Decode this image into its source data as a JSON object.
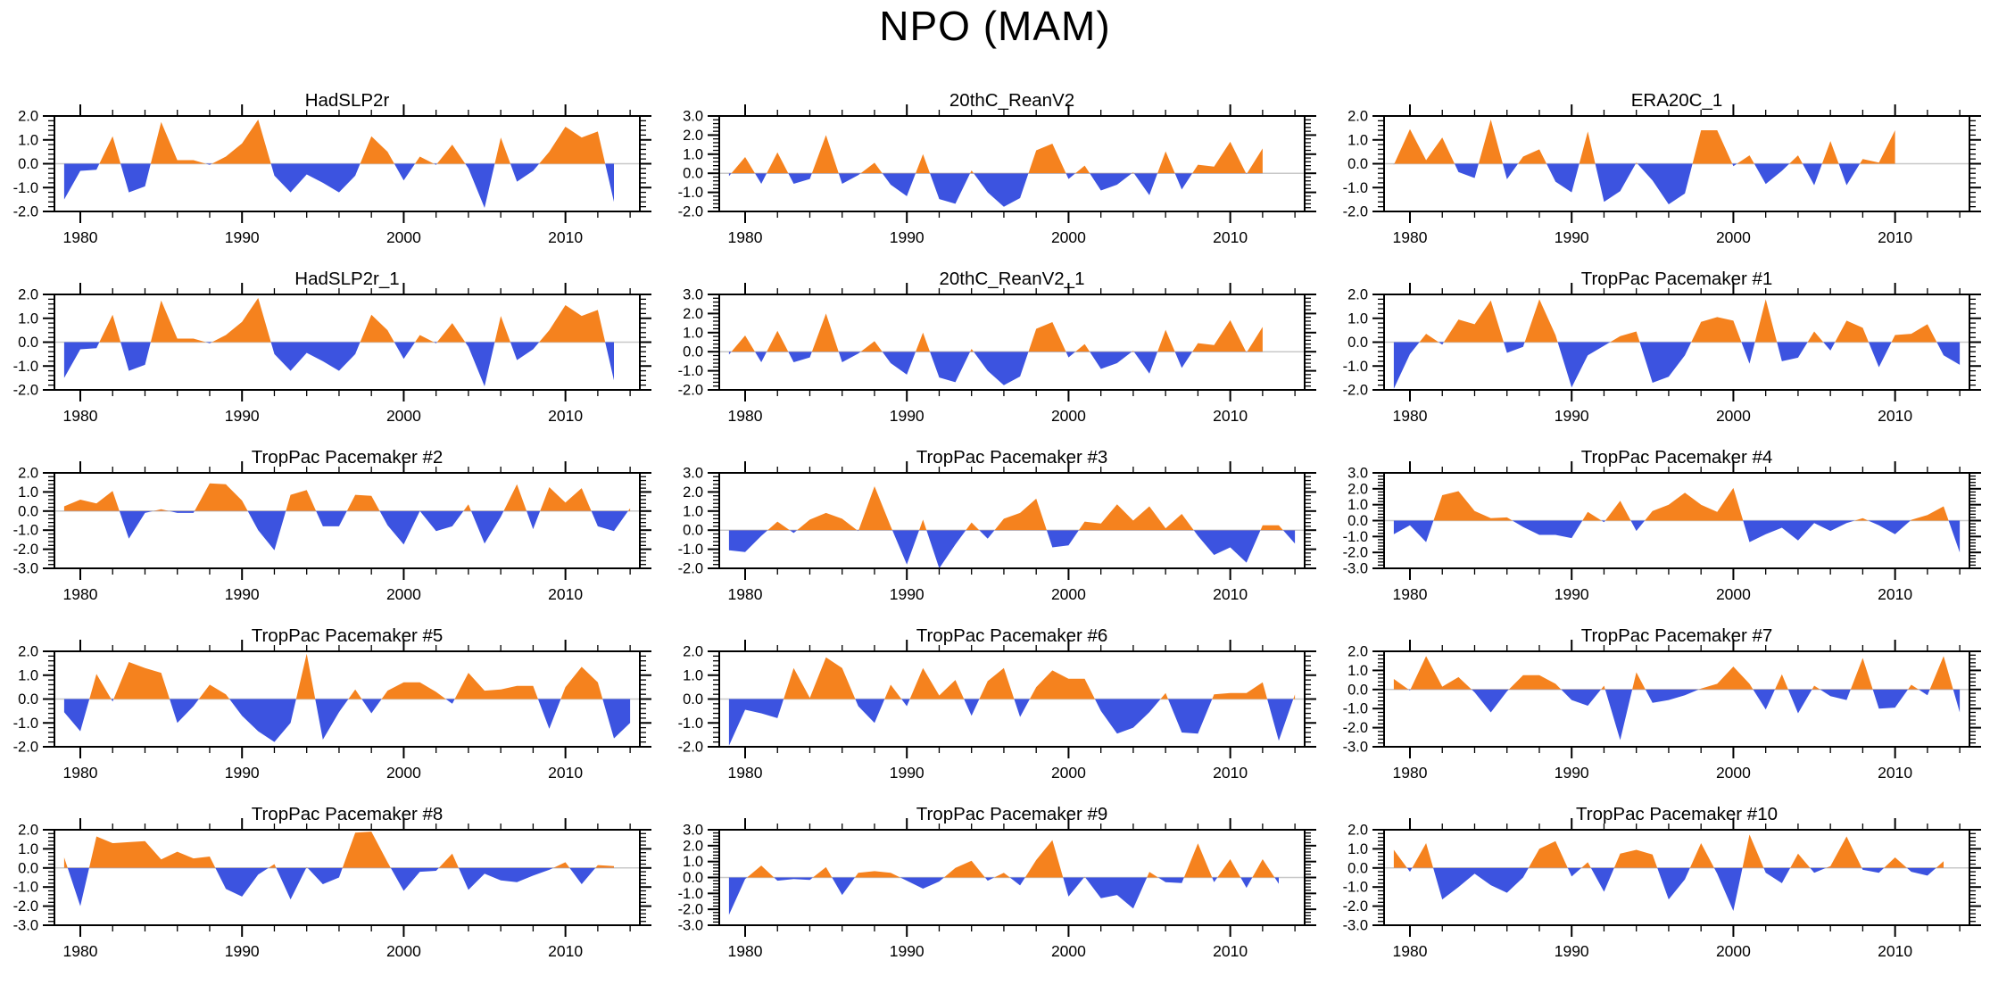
{
  "chart_data": {
    "type": "area",
    "title": "NPO (MAM)",
    "layout": {
      "grid_rows": 5,
      "grid_cols": 3,
      "fill_above_zero_color": "#F5821E",
      "fill_below_zero_color": "#3C53E0",
      "zero_line_color": "#C8C8C8",
      "frame_color": "#000000",
      "xlim": [
        1978.4,
        2014.6
      ],
      "x_major_ticks": [
        1980,
        1990,
        2000,
        2010
      ],
      "x_minor_step_years": 2,
      "y_minor_step": 0.2,
      "grid": "off",
      "legend": "none"
    },
    "x_tick_labels": [
      "1980",
      "1990",
      "2000",
      "2010"
    ],
    "panels": [
      {
        "title": "HadSLP2r",
        "ylim": [
          -2,
          2
        ],
        "ytick_labels": [
          "2.0",
          "1.0",
          "0.0",
          "-1.0",
          "-2.0"
        ],
        "start_year": 1979,
        "values": [
          -1.5,
          -0.3,
          -0.25,
          1.15,
          -1.2,
          -0.95,
          1.75,
          0.15,
          0.15,
          -0.05,
          0.3,
          0.85,
          1.85,
          -0.5,
          -1.2,
          -0.45,
          -0.8,
          -1.2,
          -0.5,
          1.15,
          0.5,
          -0.7,
          0.3,
          -0.05,
          0.8,
          -0.2,
          -1.85,
          1.1,
          -0.75,
          -0.3,
          0.5,
          1.55,
          1.1,
          1.35,
          -1.6
        ]
      },
      {
        "title": "20thC_ReanV2",
        "ylim": [
          -2,
          3
        ],
        "ytick_labels": [
          "3.0",
          "2.0",
          "1.0",
          "0.0",
          "-1.0",
          "-2.0"
        ],
        "start_year": 1979,
        "values": [
          -0.15,
          0.85,
          -0.55,
          1.1,
          -0.55,
          -0.3,
          2.0,
          -0.55,
          -0.1,
          0.55,
          -0.6,
          -1.2,
          1.0,
          -1.35,
          -1.6,
          0.15,
          -1.0,
          -1.75,
          -1.3,
          1.2,
          1.55,
          -0.3,
          0.4,
          -0.9,
          -0.6,
          0.05,
          -1.15,
          1.15,
          -0.85,
          0.45,
          0.35,
          1.65,
          -0.05,
          1.3
        ]
      },
      {
        "title": "ERA20C_1",
        "ylim": [
          -2,
          2
        ],
        "ytick_labels": [
          "2.0",
          "1.0",
          "0.0",
          "-1.0",
          "-2.0"
        ],
        "start_year": 1979,
        "values": [
          -0.05,
          1.45,
          0.15,
          1.1,
          -0.35,
          -0.6,
          1.85,
          -0.65,
          0.3,
          0.6,
          -0.75,
          -1.2,
          1.35,
          -1.6,
          -1.15,
          0.05,
          -0.7,
          -1.7,
          -1.25,
          1.4,
          1.4,
          -0.1,
          0.35,
          -0.85,
          -0.3,
          0.35,
          -0.9,
          0.95,
          -0.9,
          0.2,
          0.05,
          1.4
        ]
      },
      {
        "title": "HadSLP2r_1",
        "ylim": [
          -2,
          2
        ],
        "ytick_labels": [
          "2.0",
          "1.0",
          "0.0",
          "-1.0",
          "-2.0"
        ],
        "start_year": 1979,
        "values": [
          -1.5,
          -0.3,
          -0.25,
          1.15,
          -1.2,
          -0.95,
          1.75,
          0.15,
          0.15,
          -0.05,
          0.3,
          0.85,
          1.85,
          -0.5,
          -1.2,
          -0.45,
          -0.8,
          -1.2,
          -0.5,
          1.15,
          0.5,
          -0.7,
          0.3,
          -0.05,
          0.8,
          -0.2,
          -1.85,
          1.1,
          -0.75,
          -0.3,
          0.5,
          1.55,
          1.1,
          1.35,
          -1.6
        ]
      },
      {
        "title": "20thC_ReanV2_1",
        "ylim": [
          -2,
          3
        ],
        "ytick_labels": [
          "3.0",
          "2.0",
          "1.0",
          "0.0",
          "-1.0",
          "-2.0"
        ],
        "start_year": 1979,
        "values": [
          -0.15,
          0.85,
          -0.55,
          1.1,
          -0.55,
          -0.3,
          2.0,
          -0.55,
          -0.1,
          0.55,
          -0.6,
          -1.2,
          1.0,
          -1.35,
          -1.6,
          0.15,
          -1.0,
          -1.75,
          -1.3,
          1.2,
          1.55,
          -0.3,
          0.4,
          -0.9,
          -0.6,
          0.05,
          -1.15,
          1.15,
          -0.85,
          0.45,
          0.35,
          1.65,
          -0.05,
          1.3
        ]
      },
      {
        "title": "TropPac Pacemaker #1",
        "ylim": [
          -2,
          2
        ],
        "ytick_labels": [
          "2.0",
          "1.0",
          "0.0",
          "-1.0",
          "-2.0"
        ],
        "start_year": 1979,
        "values": [
          -1.95,
          -0.5,
          0.35,
          -0.1,
          0.95,
          0.75,
          1.75,
          -0.45,
          -0.2,
          1.8,
          0.3,
          -1.9,
          -0.55,
          -0.15,
          0.25,
          0.45,
          -1.7,
          -1.45,
          -0.55,
          0.85,
          1.05,
          0.9,
          -0.9,
          1.8,
          -0.8,
          -0.65,
          0.45,
          -0.35,
          0.9,
          0.6,
          -1.05,
          0.3,
          0.35,
          0.75,
          -0.55,
          -0.95
        ]
      },
      {
        "title": "TropPac Pacemaker #2",
        "ylim": [
          -3,
          2
        ],
        "ytick_labels": [
          "2.0",
          "1.0",
          "0.0",
          "-1.0",
          "-2.0",
          "-3.0"
        ],
        "start_year": 1979,
        "values": [
          0.25,
          0.6,
          0.4,
          1.05,
          -1.45,
          -0.1,
          0.1,
          -0.1,
          -0.1,
          1.45,
          1.4,
          0.55,
          -1.0,
          -2.05,
          0.85,
          1.1,
          -0.8,
          -0.8,
          0.85,
          0.8,
          -0.75,
          -1.75,
          0.0,
          -1.05,
          -0.8,
          0.35,
          -1.7,
          -0.3,
          1.4,
          -0.95,
          1.25,
          0.45,
          1.2,
          -0.8,
          -1.05,
          0.15
        ]
      },
      {
        "title": "TropPac Pacemaker #3",
        "ylim": [
          -2,
          3
        ],
        "ytick_labels": [
          "3.0",
          "2.0",
          "1.0",
          "0.0",
          "-1.0",
          "-2.0"
        ],
        "start_year": 1979,
        "values": [
          -1.05,
          -1.15,
          -0.3,
          0.45,
          -0.15,
          0.55,
          0.9,
          0.6,
          -0.05,
          2.3,
          0.2,
          -1.8,
          0.55,
          -2.0,
          -0.75,
          0.4,
          -0.45,
          0.6,
          0.9,
          1.65,
          -0.9,
          -0.8,
          0.45,
          0.35,
          1.35,
          0.5,
          1.25,
          0.1,
          0.85,
          -0.3,
          -1.3,
          -0.9,
          -1.7,
          0.25,
          0.25,
          -0.7
        ]
      },
      {
        "title": "TropPac Pacemaker #4",
        "ylim": [
          -3,
          3
        ],
        "ytick_labels": [
          "3.0",
          "2.0",
          "1.0",
          "0.0",
          "-1.0",
          "-2.0",
          "-3.0"
        ],
        "start_year": 1979,
        "values": [
          -0.85,
          -0.3,
          -1.35,
          1.6,
          1.85,
          0.6,
          0.15,
          0.2,
          -0.4,
          -0.9,
          -0.9,
          -1.1,
          0.55,
          -0.1,
          1.25,
          -0.65,
          0.6,
          1.0,
          1.75,
          1.0,
          0.55,
          2.05,
          -1.35,
          -0.85,
          -0.45,
          -1.25,
          -0.15,
          -0.65,
          -0.15,
          0.15,
          -0.3,
          -0.85,
          0.05,
          0.35,
          0.9,
          -2.0
        ]
      },
      {
        "title": "TropPac Pacemaker #5",
        "ylim": [
          -2,
          2
        ],
        "ytick_labels": [
          "2.0",
          "1.0",
          "0.0",
          "-1.0",
          "-2.0"
        ],
        "start_year": 1979,
        "values": [
          -0.55,
          -1.35,
          1.05,
          -0.1,
          1.55,
          1.3,
          1.1,
          -1.0,
          -0.3,
          0.6,
          0.2,
          -0.7,
          -1.35,
          -1.8,
          -1.0,
          1.9,
          -1.7,
          -0.55,
          0.4,
          -0.6,
          0.35,
          0.7,
          0.7,
          0.3,
          -0.2,
          1.1,
          0.35,
          0.4,
          0.55,
          0.55,
          -1.25,
          0.5,
          1.35,
          0.7,
          -1.65,
          -1.0
        ]
      },
      {
        "title": "TropPac Pacemaker #6",
        "ylim": [
          -2,
          2
        ],
        "ytick_labels": [
          "2.0",
          "1.0",
          "0.0",
          "-1.0",
          "-2.0"
        ],
        "start_year": 1979,
        "values": [
          -1.95,
          -0.45,
          -0.6,
          -0.8,
          1.3,
          0.05,
          1.75,
          1.3,
          -0.3,
          -1.0,
          0.6,
          -0.3,
          1.3,
          0.15,
          0.8,
          -0.7,
          0.75,
          1.3,
          -0.75,
          0.5,
          1.2,
          0.85,
          0.85,
          -0.5,
          -1.45,
          -1.2,
          -0.55,
          0.25,
          -1.4,
          -1.45,
          0.2,
          0.25,
          0.25,
          0.7,
          -1.75,
          0.2
        ]
      },
      {
        "title": "TropPac Pacemaker #7",
        "ylim": [
          -3,
          2
        ],
        "ytick_labels": [
          "2.0",
          "1.0",
          "0.0",
          "-1.0",
          "-2.0",
          "-3.0"
        ],
        "start_year": 1979,
        "values": [
          0.55,
          -0.05,
          1.75,
          0.15,
          0.65,
          -0.15,
          -1.2,
          -0.1,
          0.75,
          0.75,
          0.3,
          -0.55,
          -0.85,
          0.2,
          -2.65,
          0.9,
          -0.7,
          -0.55,
          -0.3,
          0.05,
          0.3,
          1.2,
          0.3,
          -1.05,
          0.8,
          -1.25,
          0.2,
          -0.35,
          -0.55,
          1.65,
          -1.0,
          -0.95,
          0.25,
          -0.3,
          1.75,
          -1.2
        ]
      },
      {
        "title": "TropPac Pacemaker #8",
        "ylim": [
          -3,
          2
        ],
        "ytick_labels": [
          "2.0",
          "1.0",
          "0.0",
          "-1.0",
          "-2.0",
          "-3.0"
        ],
        "start_year": 1979,
        "values": [
          0.55,
          -2.0,
          1.65,
          1.3,
          1.35,
          1.4,
          0.45,
          0.85,
          0.5,
          0.6,
          -1.1,
          -1.5,
          -0.35,
          0.2,
          -1.65,
          0.05,
          -0.85,
          -0.5,
          1.85,
          1.9,
          0.3,
          -1.2,
          -0.2,
          -0.15,
          0.75,
          -1.15,
          -0.3,
          -0.65,
          -0.75,
          -0.4,
          -0.1,
          0.3,
          -0.85,
          0.15,
          0.1
        ]
      },
      {
        "title": "TropPac Pacemaker #9",
        "ylim": [
          -3,
          3
        ],
        "ytick_labels": [
          "3.0",
          "2.0",
          "1.0",
          "0.0",
          "-1.0",
          "-2.0",
          "-3.0"
        ],
        "start_year": 1979,
        "values": [
          -2.35,
          -0.1,
          0.75,
          -0.2,
          -0.1,
          -0.15,
          0.65,
          -1.1,
          0.3,
          0.4,
          0.3,
          -0.2,
          -0.7,
          -0.25,
          0.6,
          1.05,
          -0.2,
          0.3,
          -0.5,
          1.1,
          2.35,
          -1.2,
          0.05,
          -1.3,
          -1.1,
          -1.95,
          0.35,
          -0.3,
          -0.35,
          2.15,
          -0.3,
          1.15,
          -0.65,
          1.15,
          -0.4
        ]
      },
      {
        "title": "TropPac Pacemaker #10",
        "ylim": [
          -3,
          2
        ],
        "ytick_labels": [
          "2.0",
          "1.0",
          "0.0",
          "-1.0",
          "-2.0",
          "-3.0"
        ],
        "start_year": 1979,
        "values": [
          0.95,
          -0.2,
          1.3,
          -1.65,
          -1.0,
          -0.3,
          -0.9,
          -1.3,
          -0.5,
          1.0,
          1.4,
          -0.45,
          0.3,
          -1.25,
          0.75,
          0.95,
          0.7,
          -1.65,
          -0.6,
          1.3,
          -0.3,
          -2.25,
          1.75,
          -0.25,
          -0.8,
          0.75,
          -0.25,
          0.1,
          1.65,
          -0.1,
          -0.25,
          0.55,
          -0.2,
          -0.4,
          0.35
        ]
      }
    ]
  }
}
